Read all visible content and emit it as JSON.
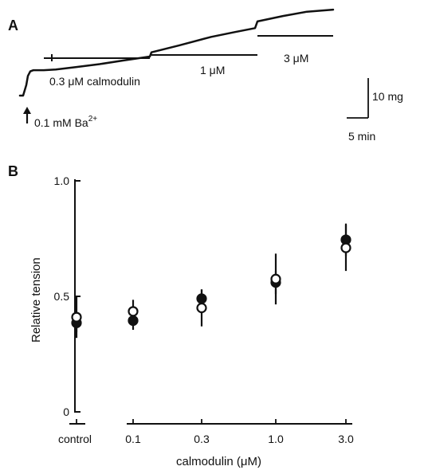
{
  "panel_a": {
    "letter": "A",
    "trace_points": [
      [
        0,
        0
      ],
      [
        4,
        0
      ],
      [
        8,
        3.5
      ],
      [
        10,
        6.5
      ],
      [
        13,
        8.0
      ],
      [
        17,
        8.4
      ],
      [
        30,
        8.4
      ],
      [
        45,
        8.6
      ],
      [
        70,
        9.4
      ],
      [
        100,
        10.4
      ],
      [
        130,
        11.6
      ],
      [
        163,
        12.9
      ],
      [
        165,
        14.3
      ],
      [
        200,
        16.6
      ],
      [
        240,
        19.4
      ],
      [
        270,
        21.0
      ],
      [
        295,
        22.3
      ],
      [
        298,
        24.5
      ],
      [
        330,
        26.3
      ],
      [
        360,
        27.7
      ],
      [
        393,
        28.4
      ]
    ],
    "ba_label": "0.1 mM Ba",
    "ba_superscript": "2+",
    "ba_arrow_icon": "up-arrow-icon",
    "additions": [
      {
        "label": "0.3 μM calmodulin",
        "start": 30,
        "end": 163
      },
      {
        "label": "1 μM",
        "start": 165,
        "end": 298
      },
      {
        "label": "3 μM",
        "start": 298,
        "end": 393
      }
    ],
    "scale_bar": {
      "vertical_label": "10 mg",
      "horizontal_label": "5 min"
    }
  },
  "panel_b": {
    "letter": "B"
  },
  "chart_data": {
    "type": "scatter",
    "title": "",
    "xlabel": "calmodulin  (μM)",
    "ylabel": "Relative tension",
    "categories": [
      "control",
      "0.1",
      "0.3",
      "1.0",
      "3.0"
    ],
    "yticks": [
      "0",
      "0.5",
      "1.0"
    ],
    "ylim": [
      0,
      1.0
    ],
    "grid": false,
    "legend": "none",
    "series": [
      {
        "marker": "filled-circle",
        "values": [
          0.385,
          0.395,
          0.49,
          0.56,
          0.745
        ],
        "error": [
          0.04,
          0.04,
          0.04,
          0.05,
          0.07
        ]
      },
      {
        "marker": "open-circle",
        "values": [
          0.41,
          0.435,
          0.45,
          0.575,
          0.71
        ],
        "error": [
          0.09,
          0.05,
          0.08,
          0.11,
          0.1
        ]
      }
    ]
  }
}
